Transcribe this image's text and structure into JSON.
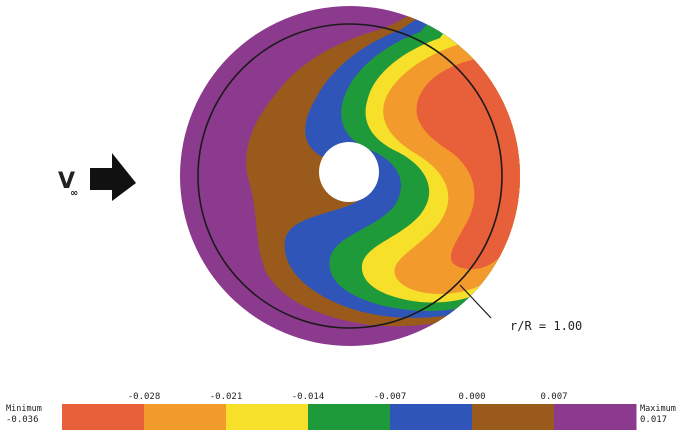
{
  "freestream": {
    "symbol": "V",
    "subscript": "∞"
  },
  "annotation": {
    "text": "r/R = 1.00"
  },
  "colorbar": {
    "min_label": "Minimum",
    "min_value": "-0.036",
    "max_label": "Maximum",
    "max_value": "0.017",
    "ticks": [
      "-0.028",
      "-0.021",
      "-0.014",
      "-0.007",
      "0.000",
      "0.007"
    ],
    "bands": [
      "#e8603a",
      "#f39a2c",
      "#f7e02a",
      "#1f9a3a",
      "#2f55b8",
      "#9a5a1c",
      "#8c3a8e"
    ]
  },
  "contour_colors": {
    "disk_background": "#8c3a8e",
    "band_brown": "#9a5a1c",
    "band_blue": "#2f55b8",
    "band_green": "#1f9a3a",
    "band_yellow": "#f7e02a",
    "band_orange": "#f39a2c",
    "band_red": "#e8603a"
  }
}
